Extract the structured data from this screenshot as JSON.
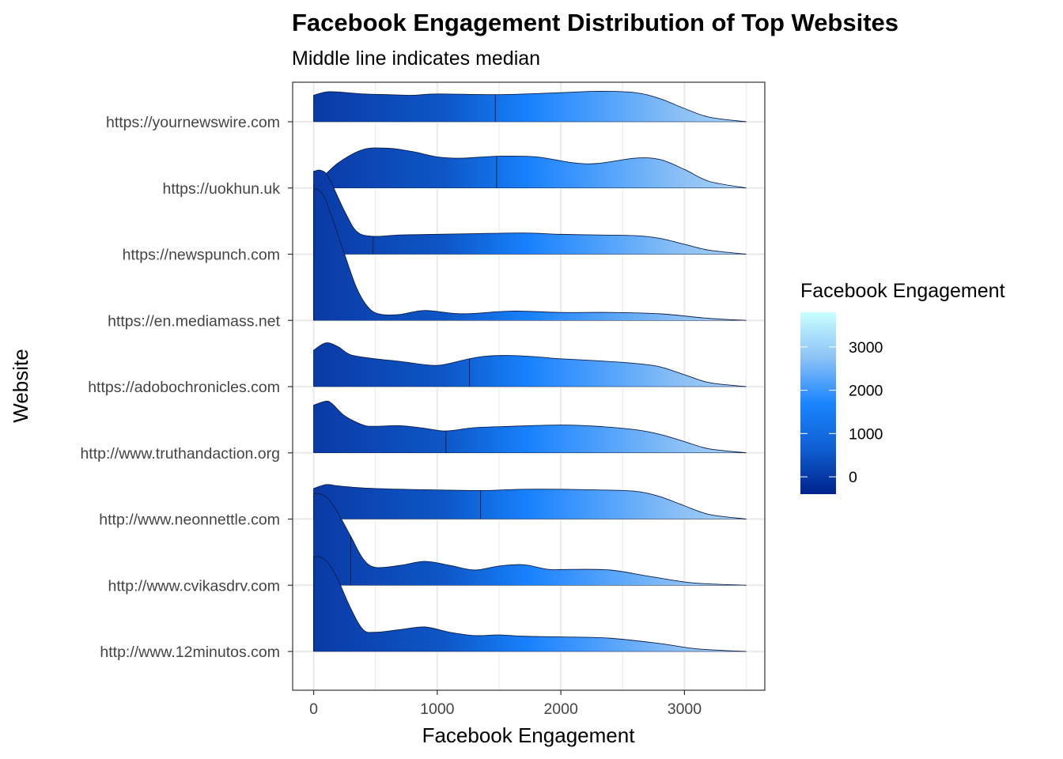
{
  "chart_data": {
    "type": "ridgeline",
    "title": "Facebook Engagement Distribution of Top Websites",
    "subtitle": "Middle line indicates median",
    "xlabel": "Facebook Engagement",
    "ylabel": "Website",
    "xlim": [
      -170,
      3650
    ],
    "xticks": [
      0,
      1000,
      2000,
      3000
    ],
    "x_tick_labels": [
      "0",
      "1000",
      "2000",
      "3000"
    ],
    "grid": true,
    "fill_mode": "gradient along x",
    "legend": {
      "title": "Facebook Engagement",
      "position": "right",
      "range": [
        -400,
        3800
      ],
      "ticks": [
        0,
        1000,
        2000,
        3000
      ],
      "tick_labels": [
        "0",
        "1000",
        "2000",
        "3000"
      ],
      "colors": [
        "#00238c",
        "#0f5fd2",
        "#1a85ff",
        "#8cc2f6",
        "#c8ffff"
      ]
    },
    "series": [
      {
        "name": "https://yournewswire.com",
        "median": 1470,
        "x": [
          0,
          100,
          200,
          400,
          600,
          800,
          1000,
          1500,
          2000,
          2300,
          2600,
          2800,
          3000,
          3200,
          3500
        ],
        "height": [
          0.4,
          0.45,
          0.45,
          0.42,
          0.41,
          0.4,
          0.42,
          0.41,
          0.44,
          0.46,
          0.44,
          0.35,
          0.2,
          0.07,
          0.0
        ]
      },
      {
        "name": "https://uokhun.uk",
        "median": 1480,
        "x": [
          0,
          50,
          200,
          400,
          600,
          800,
          1000,
          1200,
          1500,
          1800,
          2100,
          2300,
          2600,
          2800,
          3000,
          3200,
          3500
        ],
        "height": [
          0.05,
          0.12,
          0.38,
          0.58,
          0.6,
          0.55,
          0.47,
          0.45,
          0.48,
          0.47,
          0.38,
          0.37,
          0.45,
          0.43,
          0.28,
          0.1,
          0.0
        ]
      },
      {
        "name": "https://newspunch.com",
        "median": 480,
        "x": [
          0,
          50,
          100,
          150,
          250,
          350,
          480,
          700,
          1000,
          1300,
          1700,
          2000,
          2300,
          2600,
          2800,
          3000,
          3200,
          3500
        ],
        "height": [
          1.25,
          1.27,
          1.22,
          1.05,
          0.65,
          0.34,
          0.27,
          0.29,
          0.3,
          0.31,
          0.32,
          0.3,
          0.29,
          0.28,
          0.24,
          0.15,
          0.06,
          0.0
        ]
      },
      {
        "name": "https://en.mediamass.net",
        "median": 0,
        "x": [
          0,
          30,
          80,
          150,
          250,
          350,
          450,
          550,
          700,
          900,
          1200,
          1600,
          2000,
          2400,
          2800,
          3200,
          3500
        ],
        "height": [
          1.98,
          1.98,
          1.88,
          1.55,
          1.0,
          0.48,
          0.18,
          0.09,
          0.09,
          0.15,
          0.1,
          0.14,
          0.12,
          0.12,
          0.1,
          0.03,
          0.0
        ]
      },
      {
        "name": "https://adobochronicles.com",
        "median": 1260,
        "x": [
          0,
          100,
          200,
          300,
          500,
          700,
          900,
          1000,
          1100,
          1260,
          1400,
          1600,
          1800,
          2000,
          2300,
          2600,
          2800,
          3000,
          3200,
          3500
        ],
        "height": [
          0.55,
          0.66,
          0.6,
          0.48,
          0.42,
          0.38,
          0.33,
          0.32,
          0.35,
          0.42,
          0.46,
          0.47,
          0.45,
          0.42,
          0.39,
          0.35,
          0.3,
          0.18,
          0.06,
          0.0
        ]
      },
      {
        "name": "http://www.truthandaction.org",
        "median": 1070,
        "x": [
          0,
          100,
          150,
          250,
          400,
          500,
          700,
          900,
          1070,
          1300,
          1600,
          2000,
          2300,
          2600,
          2800,
          3000,
          3200,
          3500
        ],
        "height": [
          0.72,
          0.78,
          0.74,
          0.56,
          0.42,
          0.4,
          0.41,
          0.37,
          0.33,
          0.38,
          0.4,
          0.42,
          0.4,
          0.35,
          0.28,
          0.17,
          0.06,
          0.0
        ]
      },
      {
        "name": "http://www.neonnettle.com",
        "median": 1350,
        "x": [
          0,
          100,
          200,
          400,
          700,
          1000,
          1350,
          1700,
          2000,
          2300,
          2600,
          2800,
          3000,
          3200,
          3500
        ],
        "height": [
          0.46,
          0.52,
          0.5,
          0.47,
          0.45,
          0.44,
          0.43,
          0.45,
          0.45,
          0.44,
          0.42,
          0.34,
          0.2,
          0.07,
          0.0
        ]
      },
      {
        "name": "http://www.cvikasdrv.com",
        "median": 300,
        "x": [
          0,
          50,
          120,
          200,
          300,
          400,
          500,
          700,
          900,
          1100,
          1300,
          1500,
          1700,
          1900,
          2100,
          2400,
          2700,
          3000,
          3200,
          3500
        ],
        "height": [
          1.38,
          1.38,
          1.3,
          1.08,
          0.74,
          0.4,
          0.27,
          0.3,
          0.36,
          0.3,
          0.23,
          0.29,
          0.31,
          0.24,
          0.24,
          0.23,
          0.14,
          0.05,
          0.02,
          0.0
        ]
      },
      {
        "name": "http://www.12minutos.com",
        "median": 0,
        "x": [
          0,
          50,
          120,
          200,
          300,
          400,
          500,
          700,
          900,
          1100,
          1300,
          1500,
          1700,
          2000,
          2400,
          2800,
          3100,
          3500
        ],
        "height": [
          1.43,
          1.43,
          1.33,
          1.07,
          0.65,
          0.33,
          0.29,
          0.33,
          0.37,
          0.29,
          0.24,
          0.25,
          0.23,
          0.22,
          0.2,
          0.12,
          0.04,
          0.0
        ]
      }
    ]
  }
}
